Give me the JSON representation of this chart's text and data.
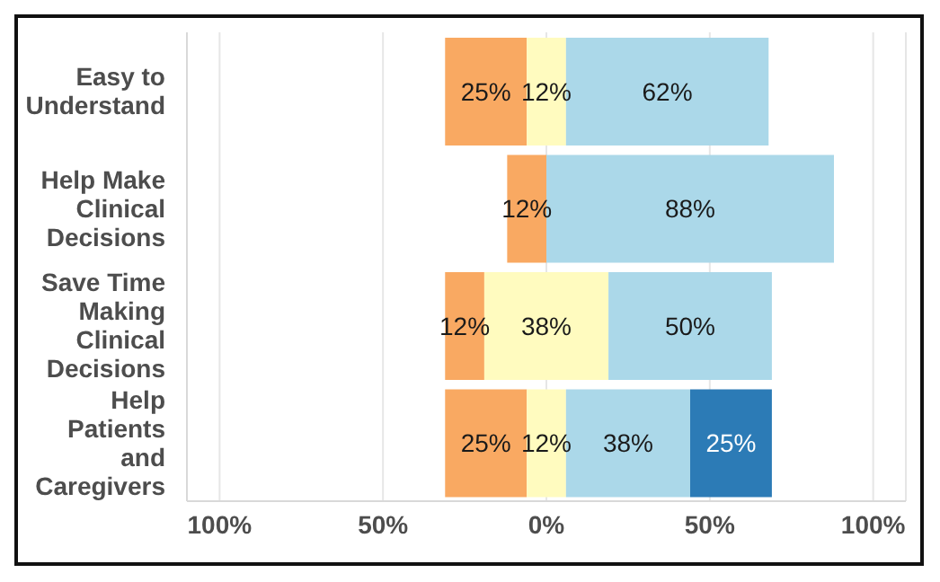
{
  "chart_data": {
    "type": "bar",
    "orientation": "horizontal",
    "categories": [
      "Easy to Understand",
      "Help Make Clinical Decisions",
      "Save Time Making Clinical Decisions",
      "Help Patients and Caregivers"
    ],
    "series": [
      {
        "color": "#f9a962",
        "base": [
          -31,
          -12,
          -31,
          -31
        ],
        "values": [
          25,
          12,
          12,
          25
        ],
        "value_labels": [
          "25%",
          "12%",
          "12%",
          "25%"
        ]
      },
      {
        "color": "#fffbbf",
        "base": [
          -6,
          null,
          -19,
          -6
        ],
        "values": [
          12,
          null,
          38,
          12
        ],
        "value_labels": [
          "12%",
          null,
          "38%",
          "12%"
        ]
      },
      {
        "color": "#abd8e9",
        "base": [
          6,
          0,
          19,
          6
        ],
        "values": [
          62,
          88,
          50,
          38
        ],
        "value_labels": [
          "62%",
          "88%",
          "50%",
          "38%"
        ]
      },
      {
        "color": "#2c7bb6",
        "base": [
          null,
          null,
          null,
          44
        ],
        "values": [
          null,
          null,
          null,
          25
        ],
        "value_labels": [
          null,
          null,
          null,
          "25%"
        ]
      }
    ],
    "xlim": [
      -110,
      110
    ],
    "xticks": [
      {
        "value": -100,
        "label": "100%"
      },
      {
        "value": -50,
        "label": "50%"
      },
      {
        "value": 0,
        "label": "0%"
      },
      {
        "value": 50,
        "label": "50%"
      },
      {
        "value": 100,
        "label": "100%"
      }
    ],
    "grid": "x",
    "legend": false
  }
}
